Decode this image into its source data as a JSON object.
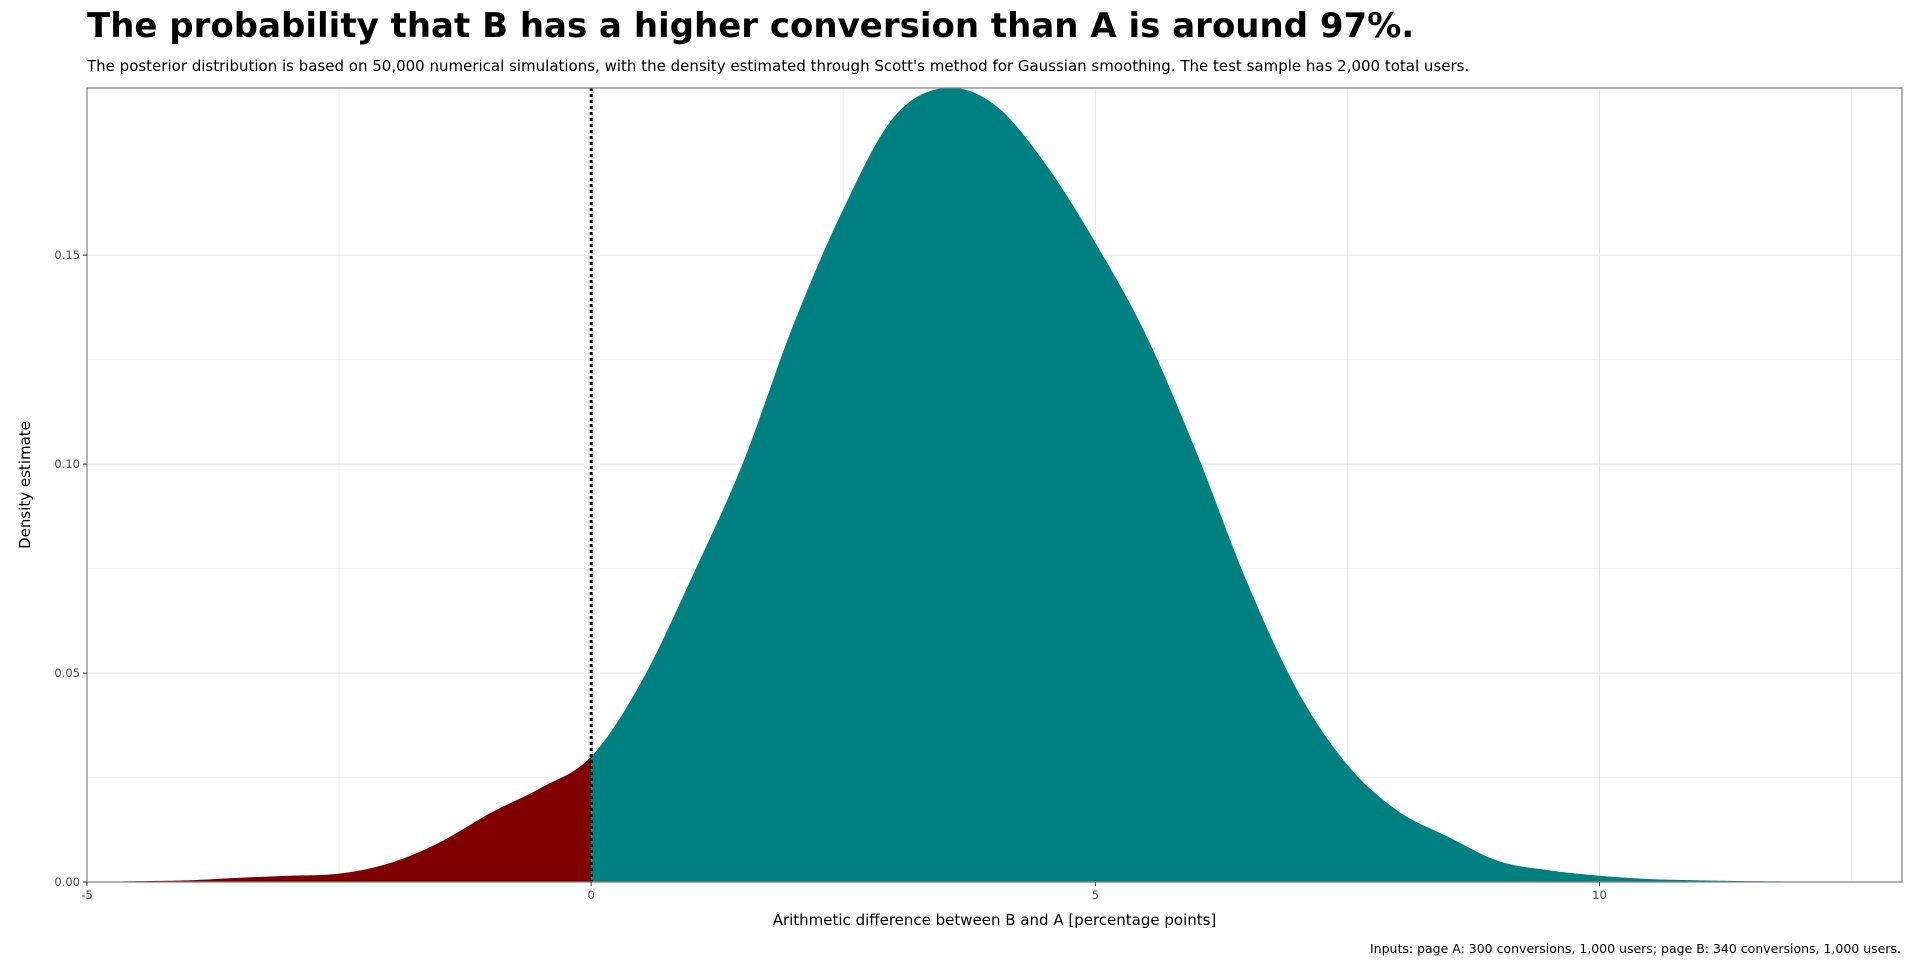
{
  "chart_data": {
    "type": "area",
    "title": "The probability that B has a higher conversion than A is around 97%.",
    "subtitle": "The posterior distribution is based on 50,000 numerical simulations, with the density estimated through Scott's method for Gaussian smoothing. The test sample has 2,000 total users.",
    "caption": "Inputs: page A: 300 conversions, 1,000 users; page B: 340 conversions, 1,000 users.",
    "xlabel": "Arithmetic difference between B and A [percentage points]",
    "ylabel": "Density estimate",
    "xlim": [
      -5,
      13
    ],
    "ylim": [
      0,
      0.19
    ],
    "x_ticks": [
      -5,
      0,
      5,
      10
    ],
    "x_tick_labels": [
      "-5",
      "0",
      "5",
      "10"
    ],
    "y_ticks": [
      0,
      0.05,
      0.1,
      0.15
    ],
    "y_tick_labels": [
      "0.00",
      "0.05",
      "0.10",
      "0.15"
    ],
    "threshold_x": 0,
    "grid": true,
    "colors": {
      "negative_region": "#800000",
      "positive_region": "#008080",
      "threshold_line": "#000000"
    },
    "series": [
      {
        "x": [
          -5.0,
          -4.5,
          -4.0,
          -3.5,
          -3.0,
          -2.5,
          -2.0,
          -1.5,
          -1.0,
          -0.5,
          0.0,
          0.5,
          1.0,
          1.5,
          2.0,
          2.5,
          3.0,
          3.5,
          4.0,
          4.5,
          5.0,
          5.5,
          6.0,
          6.5,
          7.0,
          7.5,
          8.0,
          8.5,
          9.0,
          9.5,
          10.0,
          10.5,
          11.0,
          11.5,
          12.0,
          12.5,
          13.0
        ],
        "y": [
          0.0,
          0.0002,
          0.0004,
          0.001,
          0.0015,
          0.002,
          0.0045,
          0.0095,
          0.0165,
          0.0225,
          0.03,
          0.048,
          0.073,
          0.1,
          0.133,
          0.161,
          0.183,
          0.19,
          0.186,
          0.172,
          0.153,
          0.131,
          0.103,
          0.072,
          0.046,
          0.028,
          0.017,
          0.0108,
          0.005,
          0.0028,
          0.0015,
          0.0007,
          0.0004,
          0.0002,
          0.0001,
          0.0,
          0.0
        ]
      }
    ]
  }
}
